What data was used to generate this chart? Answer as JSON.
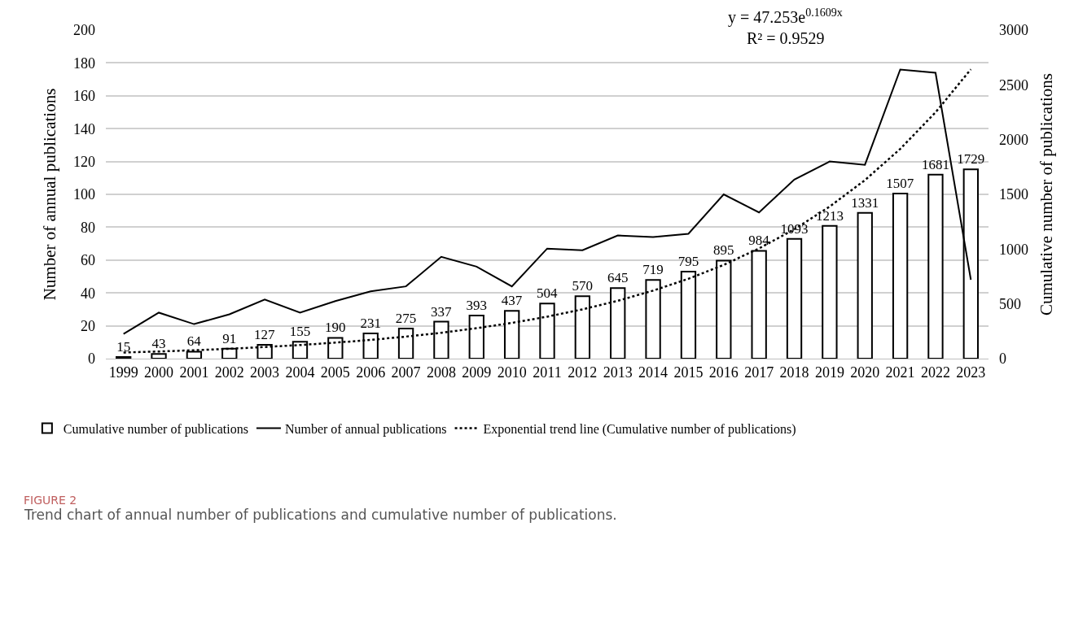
{
  "chart_data": {
    "type": "bar",
    "ylabel": "Number of annual publications",
    "y2label": "Cumulative number of publications",
    "categories": [
      "1999",
      "2000",
      "2001",
      "2002",
      "2003",
      "2004",
      "2005",
      "2006",
      "2007",
      "2008",
      "2009",
      "2010",
      "2011",
      "2012",
      "2013",
      "2014",
      "2015",
      "2016",
      "2017",
      "2018",
      "2019",
      "2020",
      "2021",
      "2022",
      "2023"
    ],
    "series": [
      {
        "name": "Cumulative number of publications",
        "axis": "y2",
        "color": "#ffffff",
        "values": [
          15,
          43,
          64,
          91,
          127,
          155,
          190,
          231,
          275,
          337,
          393,
          437,
          504,
          570,
          645,
          719,
          795,
          895,
          984,
          1093,
          1213,
          1331,
          1507,
          1681,
          1729
        ],
        "value_labels": [
          "15",
          "43",
          "64",
          "91",
          "127",
          "155",
          "190",
          "231",
          "275",
          "337",
          "393",
          "437",
          "504",
          "570",
          "645",
          "719",
          "795",
          "895",
          "984",
          "1093",
          "1213",
          "1331",
          "1507",
          "1681",
          "1729"
        ]
      },
      {
        "name": "Number of annual publications",
        "type": "line",
        "color": "#000000",
        "line_style": "solid",
        "values": [
          15,
          28,
          21,
          27,
          36,
          28,
          35,
          41,
          44,
          62,
          56,
          44,
          67,
          66,
          75,
          74,
          76,
          100,
          89,
          109,
          120,
          118,
          176,
          174,
          48
        ]
      },
      {
        "name": "Exponential trend line (Cumulative number of publications)",
        "type": "line",
        "axis": "y2",
        "color": "#000000",
        "line_style": "dotted",
        "values": [
          56,
          65,
          77,
          90,
          106,
          124,
          146,
          171,
          201,
          236,
          278,
          326,
          383,
          450,
          528,
          621,
          729,
          856,
          1006,
          1181,
          1388,
          1630,
          1915,
          2249,
          2642
        ]
      }
    ],
    "ylim": [
      0,
      200
    ],
    "yticks": [
      0,
      20,
      40,
      60,
      80,
      100,
      120,
      140,
      160,
      180,
      200
    ],
    "y2lim": [
      0,
      3000
    ],
    "y2ticks": [
      0,
      500,
      1000,
      1500,
      2000,
      2500,
      3000
    ],
    "grid": "y",
    "legend": "bottom",
    "marker": "none",
    "annotations": [
      "y = 47.253e$^{0.1609x}$",
      "R² = 0.9529",
      "FIGURE 2",
      "Trend chart of annual number of publications and cumulative number of publications."
    ]
  }
}
